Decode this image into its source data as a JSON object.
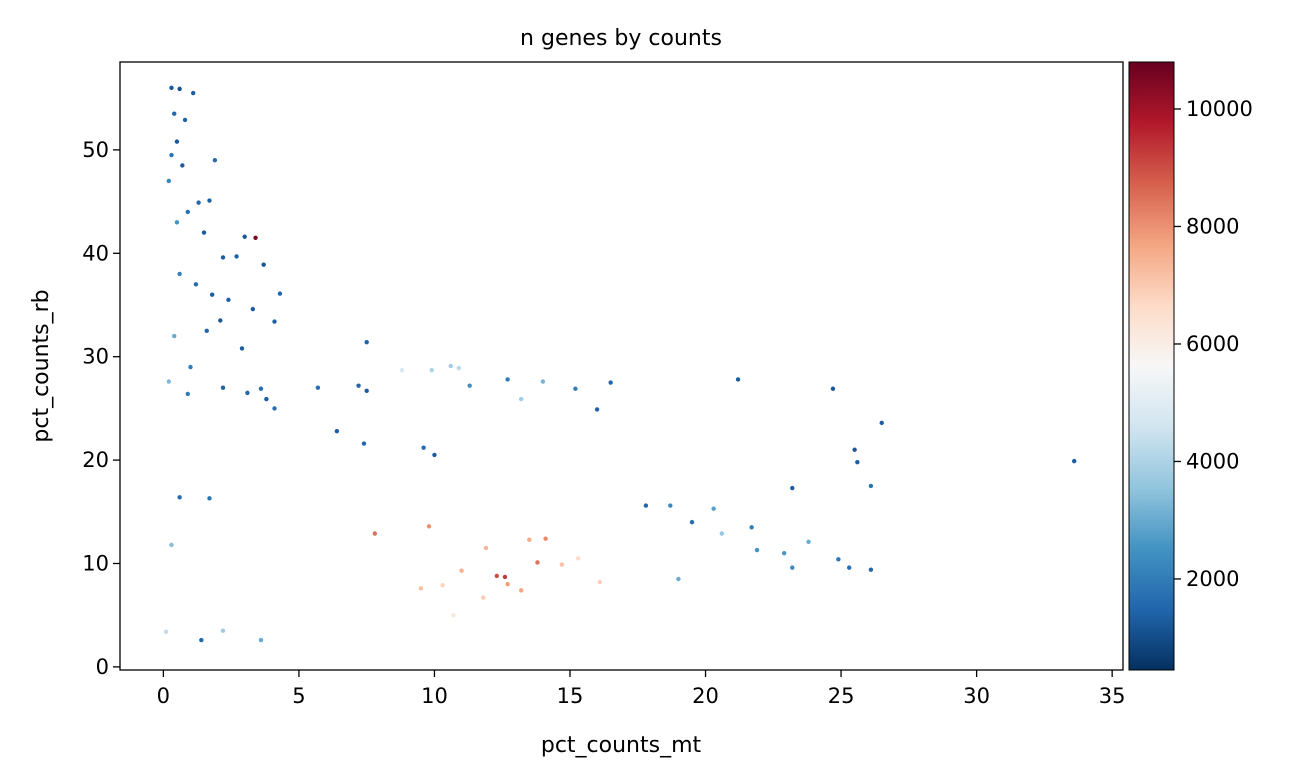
{
  "chart_data": {
    "type": "scatter",
    "title": "n genes by counts",
    "xlabel": "pct_counts_mt",
    "ylabel": "pct_counts_rb",
    "xlim": [
      -1.6,
      35.4
    ],
    "ylim": [
      -0.3,
      58.5
    ],
    "xticks": [
      0,
      5,
      10,
      15,
      20,
      25,
      30,
      35
    ],
    "xtick_labels": [
      "0",
      "5",
      "10",
      "15",
      "20",
      "25",
      "30",
      "35"
    ],
    "yticks": [
      0,
      10,
      20,
      30,
      40,
      50
    ],
    "ytick_labels": [
      "0",
      "10",
      "20",
      "30",
      "40",
      "50"
    ],
    "grid": false,
    "colorbar": {
      "colormap": "RdBu_r",
      "range": [
        450,
        10800
      ],
      "ticks": [
        2000,
        4000,
        6000,
        8000,
        10000
      ],
      "tick_labels": [
        "2000",
        "4000",
        "6000",
        "8000",
        "10000"
      ]
    },
    "color_variable": "n_genes_by_counts",
    "points": [
      [
        0.3,
        56.0,
        1200
      ],
      [
        0.6,
        55.9,
        1100
      ],
      [
        1.1,
        55.5,
        1300
      ],
      [
        0.4,
        53.5,
        1500
      ],
      [
        0.8,
        52.9,
        1400
      ],
      [
        0.5,
        50.8,
        1200
      ],
      [
        0.3,
        49.5,
        1800
      ],
      [
        1.9,
        49.0,
        1600
      ],
      [
        0.7,
        48.5,
        1300
      ],
      [
        0.2,
        47.0,
        2200
      ],
      [
        1.3,
        44.9,
        1500
      ],
      [
        1.7,
        45.1,
        1400
      ],
      [
        0.9,
        44.0,
        1700
      ],
      [
        0.5,
        43.0,
        2500
      ],
      [
        1.5,
        42.0,
        1300
      ],
      [
        3.0,
        41.6,
        1200
      ],
      [
        3.4,
        41.5,
        10500
      ],
      [
        2.2,
        39.6,
        1300
      ],
      [
        2.7,
        39.7,
        1400
      ],
      [
        3.7,
        38.9,
        1200
      ],
      [
        0.6,
        38.0,
        2100
      ],
      [
        1.2,
        37.0,
        1600
      ],
      [
        1.8,
        36.0,
        1300
      ],
      [
        4.3,
        36.1,
        1500
      ],
      [
        2.4,
        35.5,
        1400
      ],
      [
        3.3,
        34.6,
        1300
      ],
      [
        2.1,
        33.5,
        1200
      ],
      [
        4.1,
        33.4,
        1400
      ],
      [
        0.4,
        32.0,
        3000
      ],
      [
        1.6,
        32.5,
        1500
      ],
      [
        2.9,
        30.8,
        1300
      ],
      [
        7.5,
        31.4,
        1400
      ],
      [
        1.0,
        29.0,
        2000
      ],
      [
        0.2,
        27.6,
        3300
      ],
      [
        2.2,
        27.0,
        1400
      ],
      [
        3.6,
        26.9,
        1600
      ],
      [
        5.7,
        27.0,
        1700
      ],
      [
        7.2,
        27.2,
        1500
      ],
      [
        7.5,
        26.7,
        1300
      ],
      [
        11.3,
        27.2,
        2400
      ],
      [
        12.7,
        27.8,
        2000
      ],
      [
        14.0,
        27.6,
        3200
      ],
      [
        16.5,
        27.5,
        1500
      ],
      [
        21.2,
        27.8,
        1300
      ],
      [
        24.7,
        26.9,
        1200
      ],
      [
        26.5,
        23.6,
        1300
      ],
      [
        33.6,
        19.9,
        1300
      ],
      [
        25.5,
        21.0,
        1200
      ],
      [
        25.6,
        19.8,
        1300
      ],
      [
        26.1,
        17.5,
        1800
      ],
      [
        23.2,
        17.3,
        1300
      ],
      [
        0.9,
        26.4,
        2000
      ],
      [
        3.1,
        26.5,
        1500
      ],
      [
        4.1,
        25.0,
        1700
      ],
      [
        3.8,
        25.9,
        1300
      ],
      [
        0.6,
        16.4,
        1600
      ],
      [
        1.7,
        16.3,
        1800
      ],
      [
        0.3,
        11.8,
        3400
      ],
      [
        0.1,
        3.4,
        4300
      ],
      [
        1.4,
        2.6,
        1500
      ],
      [
        3.6,
        2.6,
        3000
      ],
      [
        2.2,
        3.5,
        3800
      ],
      [
        22.9,
        11.0,
        2600
      ],
      [
        23.8,
        12.1,
        3000
      ],
      [
        23.2,
        9.6,
        2300
      ],
      [
        24.9,
        10.4,
        1900
      ],
      [
        25.3,
        9.6,
        1700
      ],
      [
        26.1,
        9.4,
        1500
      ],
      [
        21.7,
        13.5,
        2000
      ],
      [
        21.9,
        11.3,
        2500
      ],
      [
        19.5,
        14.0,
        1700
      ],
      [
        18.7,
        15.6,
        2300
      ],
      [
        20.3,
        15.3,
        2800
      ],
      [
        20.6,
        12.9,
        3600
      ],
      [
        19.0,
        8.5,
        3000
      ],
      [
        17.8,
        15.6,
        1500
      ],
      [
        16.0,
        24.9,
        1400
      ],
      [
        15.2,
        26.9,
        2000
      ],
      [
        13.2,
        25.9,
        3800
      ],
      [
        9.9,
        28.7,
        4000
      ],
      [
        8.8,
        28.7,
        4800
      ],
      [
        10.6,
        29.1,
        3800
      ],
      [
        10.9,
        28.9,
        4200
      ],
      [
        6.4,
        22.8,
        1300
      ],
      [
        7.4,
        21.6,
        1500
      ],
      [
        9.6,
        21.2,
        1600
      ],
      [
        10.0,
        20.5,
        1300
      ],
      [
        7.8,
        12.9,
        8500
      ],
      [
        9.8,
        13.6,
        8000
      ],
      [
        9.5,
        7.6,
        7200
      ],
      [
        10.3,
        7.9,
        6800
      ],
      [
        11.0,
        9.3,
        7500
      ],
      [
        11.8,
        6.7,
        7000
      ],
      [
        12.3,
        8.8,
        9000
      ],
      [
        12.6,
        8.7,
        9300
      ],
      [
        13.8,
        10.1,
        8500
      ],
      [
        13.5,
        12.3,
        7600
      ],
      [
        14.7,
        9.9,
        7200
      ],
      [
        16.1,
        8.2,
        6900
      ],
      [
        10.7,
        5.0,
        6200
      ],
      [
        12.7,
        8.0,
        7800
      ],
      [
        11.9,
        11.5,
        7400
      ],
      [
        13.2,
        7.4,
        7700
      ],
      [
        15.3,
        10.5,
        6600
      ],
      [
        14.1,
        12.4,
        8100
      ]
    ]
  }
}
